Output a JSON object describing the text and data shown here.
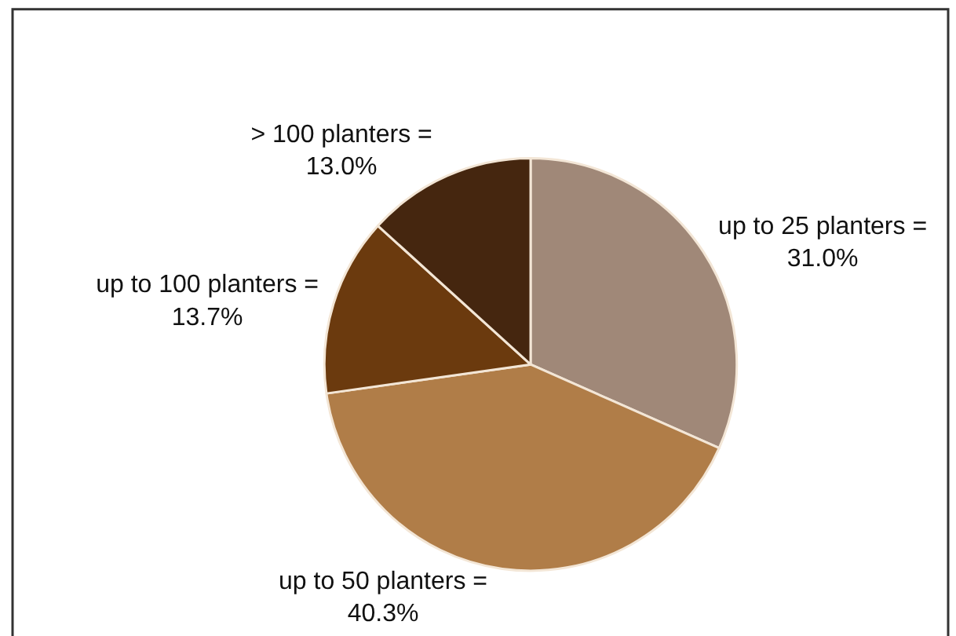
{
  "chart_data": {
    "type": "pie",
    "categories": [
      "up to 25 planters =",
      "up to 50 planters =",
      "up to 100 planters =",
      "> 100 planters ="
    ],
    "values": [
      31.0,
      40.3,
      13.7,
      13.0
    ],
    "value_labels": [
      "31.0%",
      "40.3%",
      "13.7%",
      "13.0%"
    ],
    "colors": [
      "#a08878",
      "#b07d48",
      "#6b3a0e",
      "#45260f"
    ]
  }
}
